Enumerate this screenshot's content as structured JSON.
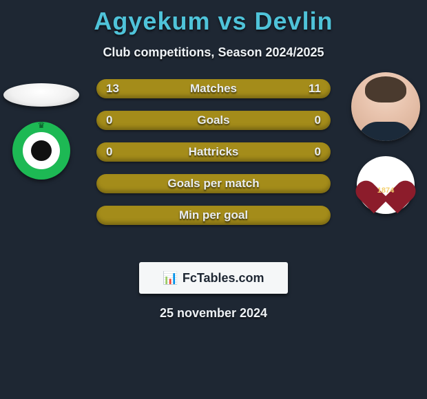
{
  "title": "Agyekum vs Devlin",
  "subtitle": "Club competitions, Season 2024/2025",
  "branding": {
    "icon": "📊",
    "text": "FcTables.com"
  },
  "date": "25 november 2024",
  "colors": {
    "background": "#1e2733",
    "title": "#4fc3d9",
    "bar": "#a48c1a",
    "text": "#eef2f5"
  },
  "bars": [
    {
      "label": "Matches",
      "left": "13",
      "right": "11"
    },
    {
      "label": "Goals",
      "left": "0",
      "right": "0"
    },
    {
      "label": "Hattricks",
      "left": "0",
      "right": "0"
    },
    {
      "label": "Goals per match",
      "left": "",
      "right": ""
    },
    {
      "label": "Min per goal",
      "left": "",
      "right": ""
    }
  ],
  "left_club_year": "",
  "right_club_year": "1874"
}
